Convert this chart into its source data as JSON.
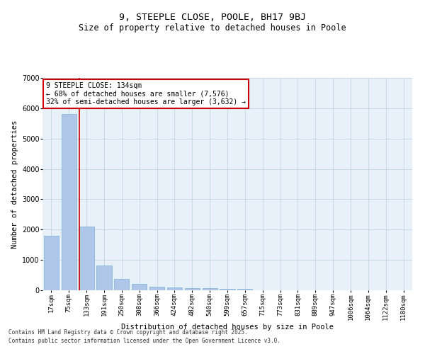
{
  "title": "9, STEEPLE CLOSE, POOLE, BH17 9BJ",
  "subtitle": "Size of property relative to detached houses in Poole",
  "xlabel": "Distribution of detached houses by size in Poole",
  "ylabel": "Number of detached properties",
  "categories": [
    "17sqm",
    "75sqm",
    "133sqm",
    "191sqm",
    "250sqm",
    "308sqm",
    "366sqm",
    "424sqm",
    "482sqm",
    "540sqm",
    "599sqm",
    "657sqm",
    "715sqm",
    "773sqm",
    "831sqm",
    "889sqm",
    "947sqm",
    "1006sqm",
    "1064sqm",
    "1122sqm",
    "1180sqm"
  ],
  "values": [
    1790,
    5820,
    2090,
    820,
    375,
    215,
    120,
    98,
    78,
    62,
    52,
    48,
    0,
    0,
    0,
    0,
    0,
    0,
    0,
    0,
    0
  ],
  "bar_color": "#aec6e8",
  "bar_edge_color": "#7aafd4",
  "vline_color": "#cc0000",
  "vline_index": 2,
  "annotation_text": "9 STEEPLE CLOSE: 134sqm\n← 68% of detached houses are smaller (7,576)\n32% of semi-detached houses are larger (3,632) →",
  "annotation_box_color": "#cc0000",
  "grid_color": "#c8d8e8",
  "background_color": "#e8f0f8",
  "ylim": [
    0,
    7000
  ],
  "yticks": [
    0,
    1000,
    2000,
    3000,
    4000,
    5000,
    6000,
    7000
  ],
  "footer_line1": "Contains HM Land Registry data © Crown copyright and database right 2025.",
  "footer_line2": "Contains public sector information licensed under the Open Government Licence v3.0."
}
